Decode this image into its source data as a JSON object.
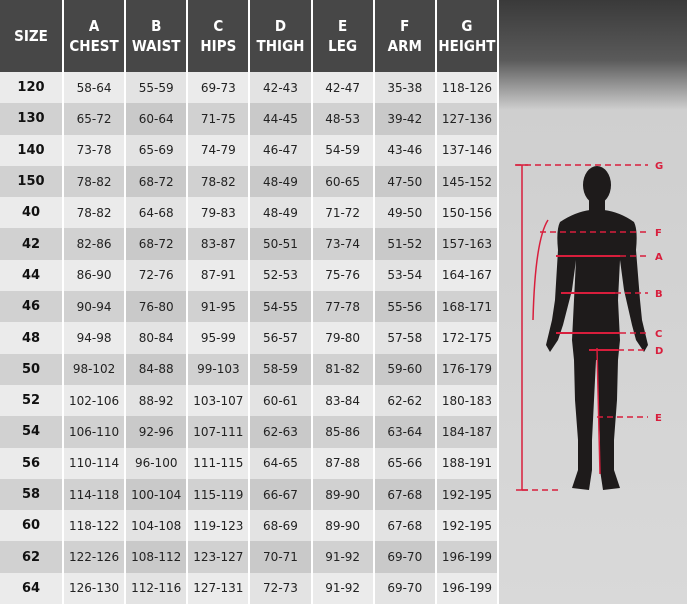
{
  "table": {
    "headers": [
      {
        "letter": "",
        "label": "SIZE"
      },
      {
        "letter": "A",
        "label": "CHEST"
      },
      {
        "letter": "B",
        "label": "WAIST"
      },
      {
        "letter": "C",
        "label": "HIPS"
      },
      {
        "letter": "D",
        "label": "THIGH"
      },
      {
        "letter": "E",
        "label": "LEG"
      },
      {
        "letter": "F",
        "label": "ARM"
      },
      {
        "letter": "G",
        "label": "HEIGHT"
      }
    ],
    "rows": [
      [
        "120",
        "58-64",
        "55-59",
        "69-73",
        "42-43",
        "42-47",
        "35-38",
        "118-126"
      ],
      [
        "130",
        "65-72",
        "60-64",
        "71-75",
        "44-45",
        "48-53",
        "39-42",
        "127-136"
      ],
      [
        "140",
        "73-78",
        "65-69",
        "74-79",
        "46-47",
        "54-59",
        "43-46",
        "137-146"
      ],
      [
        "150",
        "78-82",
        "68-72",
        "78-82",
        "48-49",
        "60-65",
        "47-50",
        "145-152"
      ],
      [
        "40",
        "78-82",
        "64-68",
        "79-83",
        "48-49",
        "71-72",
        "49-50",
        "150-156"
      ],
      [
        "42",
        "82-86",
        "68-72",
        "83-87",
        "50-51",
        "73-74",
        "51-52",
        "157-163"
      ],
      [
        "44",
        "86-90",
        "72-76",
        "87-91",
        "52-53",
        "75-76",
        "53-54",
        "164-167"
      ],
      [
        "46",
        "90-94",
        "76-80",
        "91-95",
        "54-55",
        "77-78",
        "55-56",
        "168-171"
      ],
      [
        "48",
        "94-98",
        "80-84",
        "95-99",
        "56-57",
        "79-80",
        "57-58",
        "172-175"
      ],
      [
        "50",
        "98-102",
        "84-88",
        "99-103",
        "58-59",
        "81-82",
        "59-60",
        "176-179"
      ],
      [
        "52",
        "102-106",
        "88-92",
        "103-107",
        "60-61",
        "83-84",
        "62-62",
        "180-183"
      ],
      [
        "54",
        "106-110",
        "92-96",
        "107-111",
        "62-63",
        "85-86",
        "63-64",
        "184-187"
      ],
      [
        "56",
        "110-114",
        "96-100",
        "111-115",
        "64-65",
        "87-88",
        "65-66",
        "188-191"
      ],
      [
        "58",
        "114-118",
        "100-104",
        "115-119",
        "66-67",
        "89-90",
        "67-68",
        "192-195"
      ],
      [
        "60",
        "118-122",
        "104-108",
        "119-123",
        "68-69",
        "89-90",
        "67-68",
        "192-195"
      ],
      [
        "62",
        "122-126",
        "108-112",
        "123-127",
        "70-71",
        "91-92",
        "69-70",
        "196-199"
      ],
      [
        "64",
        "126-130",
        "112-116",
        "127-131",
        "72-73",
        "91-92",
        "69-70",
        "196-199"
      ]
    ]
  },
  "figure": {
    "markers": [
      "G",
      "F",
      "A",
      "B",
      "C",
      "D",
      "E"
    ],
    "line_color": "#d81e3c",
    "silhouette_color": "#1e1b1b"
  }
}
